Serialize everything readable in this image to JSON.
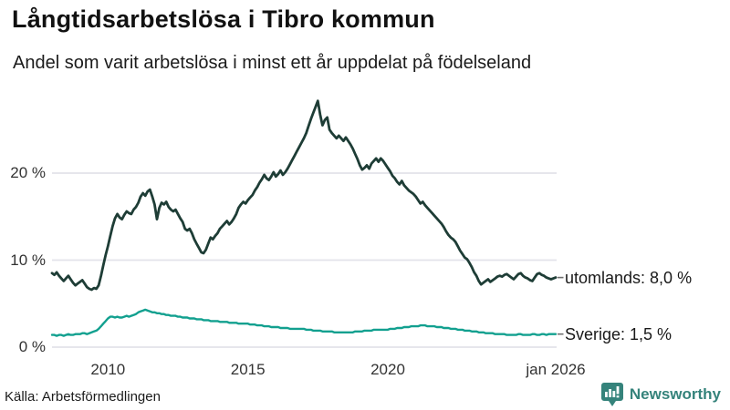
{
  "header": {
    "title": "Långtidsarbetslösa i Tibro kommun",
    "subtitle": "Andel som varit arbetslösa i minst ett år uppdelat på födelseland"
  },
  "footer": {
    "source": "Källa: Arbetsförmedlingen",
    "brand": "Newsworthy"
  },
  "colors": {
    "series_utomlands": "#1e3d36",
    "series_sverige": "#12a08f",
    "grid": "#e3e3ea",
    "tick_text": "#333333",
    "label_text": "#191919",
    "connector": "#6e6e6e",
    "brand_teal": "#35837b",
    "background": "#ffffff"
  },
  "chart_data": {
    "type": "line",
    "title": "Långtidsarbetslösa i Tibro kommun",
    "subtitle": "Andel som varit arbetslösa i minst ett år uppdelat på födelseland",
    "x_start": "jan 2008",
    "x_end": "jan 2026",
    "x_interval": "monthly",
    "yunit": "%",
    "ylim": [
      0,
      30
    ],
    "grid": true,
    "legend_position": "end-of-line-labels-right",
    "yticks": [
      {
        "label": "0 %",
        "value": 0
      },
      {
        "label": "10 %",
        "value": 10
      },
      {
        "label": "20 %",
        "value": 20
      }
    ],
    "xticks": [
      {
        "label": "2010",
        "year": 2010
      },
      {
        "label": "2015",
        "year": 2015
      },
      {
        "label": "2020",
        "year": 2020
      },
      {
        "label": "jan 2026",
        "year": 2026
      }
    ],
    "series": [
      {
        "name": "utomlands",
        "end_label": "utomlands: 8,0 %",
        "color": "#1e3d36",
        "values": [
          8.5,
          8.3,
          8.6,
          8.2,
          7.9,
          7.6,
          7.9,
          8.2,
          7.8,
          7.4,
          7.1,
          7.3,
          7.5,
          7.7,
          7.3,
          6.9,
          6.7,
          6.6,
          6.8,
          6.7,
          7.1,
          8.2,
          9.4,
          10.6,
          11.6,
          12.8,
          13.9,
          14.8,
          15.3,
          14.9,
          14.7,
          15.2,
          15.6,
          15.4,
          15.3,
          15.8,
          16.1,
          16.6,
          17.3,
          17.7,
          17.4,
          17.9,
          18.1,
          17.3,
          16.4,
          14.7,
          16.0,
          16.6,
          16.4,
          16.7,
          16.1,
          15.8,
          15.6,
          15.8,
          15.3,
          14.8,
          14.4,
          13.6,
          13.4,
          13.6,
          13.1,
          12.4,
          11.9,
          11.4,
          10.9,
          10.8,
          11.2,
          11.9,
          12.6,
          12.4,
          12.8,
          13.1,
          13.6,
          13.9,
          14.2,
          14.5,
          14.1,
          14.4,
          14.8,
          15.3,
          16.0,
          16.4,
          16.7,
          16.5,
          16.9,
          17.2,
          17.5,
          18.0,
          18.4,
          18.9,
          19.3,
          19.8,
          19.4,
          19.2,
          19.6,
          20.1,
          19.6,
          19.9,
          20.3,
          19.8,
          20.1,
          20.5,
          21.0,
          21.5,
          22.0,
          22.5,
          23.0,
          23.5,
          24.0,
          24.6,
          25.4,
          26.2,
          26.9,
          27.6,
          28.3,
          26.7,
          25.5,
          26.1,
          26.4,
          25.0,
          24.6,
          24.3,
          24.0,
          24.3,
          24.0,
          23.7,
          24.1,
          23.7,
          23.3,
          22.8,
          22.2,
          21.6,
          20.9,
          20.4,
          20.6,
          20.9,
          20.5,
          21.1,
          21.4,
          21.7,
          21.3,
          21.7,
          21.4,
          21.0,
          20.6,
          20.2,
          19.7,
          19.4,
          19.0,
          18.7,
          19.1,
          18.6,
          18.3,
          18.0,
          17.8,
          17.6,
          17.3,
          16.9,
          16.5,
          16.7,
          16.3,
          16.0,
          15.7,
          15.4,
          15.1,
          14.8,
          14.5,
          14.2,
          13.8,
          13.3,
          12.9,
          12.6,
          12.4,
          12.1,
          11.6,
          11.1,
          10.7,
          10.3,
          10.1,
          9.7,
          9.2,
          8.6,
          8.2,
          7.6,
          7.2,
          7.4,
          7.6,
          7.8,
          7.5,
          7.7,
          7.9,
          8.1,
          8.2,
          8.1,
          8.3,
          8.4,
          8.2,
          8.0,
          7.8,
          8.1,
          8.4,
          8.5,
          8.2,
          8.0,
          7.9,
          7.7,
          7.6,
          8.0,
          8.4,
          8.5,
          8.3,
          8.2,
          8.0,
          7.9,
          7.8,
          7.9,
          8.0
        ]
      },
      {
        "name": "Sverige",
        "end_label": "Sverige: 1,5 %",
        "color": "#12a08f",
        "values": [
          1.4,
          1.4,
          1.3,
          1.4,
          1.4,
          1.3,
          1.4,
          1.5,
          1.4,
          1.4,
          1.5,
          1.5,
          1.5,
          1.6,
          1.6,
          1.5,
          1.6,
          1.7,
          1.8,
          1.9,
          2.1,
          2.4,
          2.7,
          3.0,
          3.3,
          3.5,
          3.5,
          3.4,
          3.5,
          3.4,
          3.4,
          3.5,
          3.6,
          3.5,
          3.6,
          3.7,
          3.8,
          4.0,
          4.1,
          4.2,
          4.3,
          4.2,
          4.1,
          4.0,
          4.0,
          3.9,
          3.9,
          3.8,
          3.8,
          3.7,
          3.7,
          3.6,
          3.6,
          3.6,
          3.5,
          3.5,
          3.4,
          3.4,
          3.4,
          3.3,
          3.3,
          3.3,
          3.2,
          3.2,
          3.2,
          3.1,
          3.1,
          3.1,
          3.0,
          3.0,
          3.0,
          3.0,
          2.9,
          2.9,
          2.9,
          2.9,
          2.8,
          2.8,
          2.8,
          2.8,
          2.7,
          2.7,
          2.7,
          2.7,
          2.7,
          2.6,
          2.6,
          2.6,
          2.5,
          2.5,
          2.5,
          2.4,
          2.4,
          2.4,
          2.3,
          2.3,
          2.3,
          2.3,
          2.2,
          2.2,
          2.2,
          2.2,
          2.1,
          2.1,
          2.1,
          2.1,
          2.1,
          2.1,
          2.1,
          2.0,
          2.0,
          2.0,
          1.9,
          1.9,
          1.9,
          1.9,
          1.8,
          1.8,
          1.8,
          1.8,
          1.8,
          1.7,
          1.7,
          1.7,
          1.7,
          1.7,
          1.7,
          1.7,
          1.7,
          1.7,
          1.8,
          1.8,
          1.8,
          1.8,
          1.9,
          1.9,
          1.9,
          1.9,
          2.0,
          2.0,
          2.0,
          2.0,
          2.0,
          2.0,
          2.0,
          2.1,
          2.1,
          2.1,
          2.2,
          2.2,
          2.2,
          2.3,
          2.3,
          2.3,
          2.4,
          2.4,
          2.4,
          2.4,
          2.5,
          2.5,
          2.5,
          2.4,
          2.4,
          2.4,
          2.4,
          2.3,
          2.3,
          2.3,
          2.2,
          2.2,
          2.2,
          2.1,
          2.1,
          2.1,
          2.0,
          2.0,
          2.0,
          1.9,
          1.9,
          1.9,
          1.8,
          1.8,
          1.8,
          1.7,
          1.7,
          1.7,
          1.6,
          1.6,
          1.6,
          1.6,
          1.5,
          1.5,
          1.5,
          1.5,
          1.5,
          1.4,
          1.4,
          1.4,
          1.4,
          1.4,
          1.5,
          1.5,
          1.4,
          1.4,
          1.4,
          1.4,
          1.5,
          1.5,
          1.4,
          1.4,
          1.5,
          1.5,
          1.4,
          1.5,
          1.5,
          1.5,
          1.5
        ]
      }
    ]
  }
}
